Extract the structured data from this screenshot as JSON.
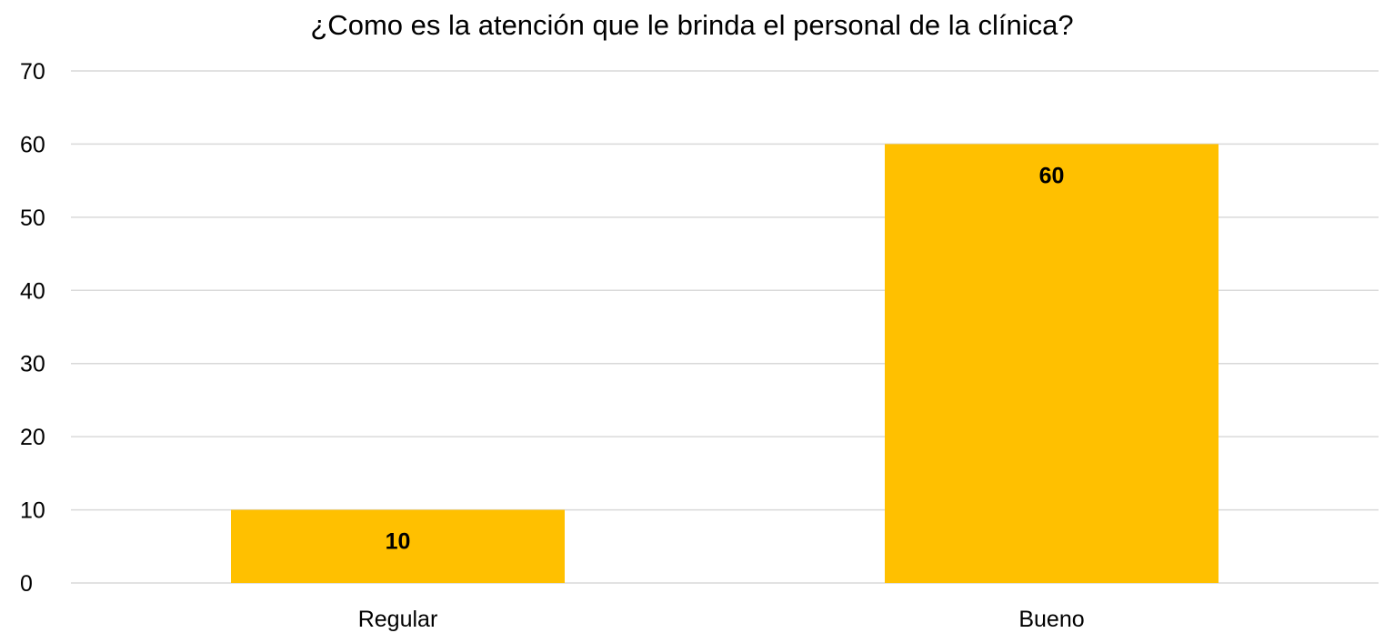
{
  "chart_data": {
    "type": "bar",
    "title": "¿Como es la atención  que le brinda  el personal de la clínica?",
    "categories": [
      "Regular",
      "Bueno"
    ],
    "values": [
      10,
      60
    ],
    "data_labels": [
      "10",
      "60"
    ],
    "ylim": [
      0,
      70
    ],
    "yticks": [
      "0",
      "10",
      "20",
      "30",
      "40",
      "50",
      "60",
      "70"
    ],
    "grid": true,
    "legend": "none",
    "bar_color": "#FFC000",
    "grid_color": "#D9D9D9"
  }
}
